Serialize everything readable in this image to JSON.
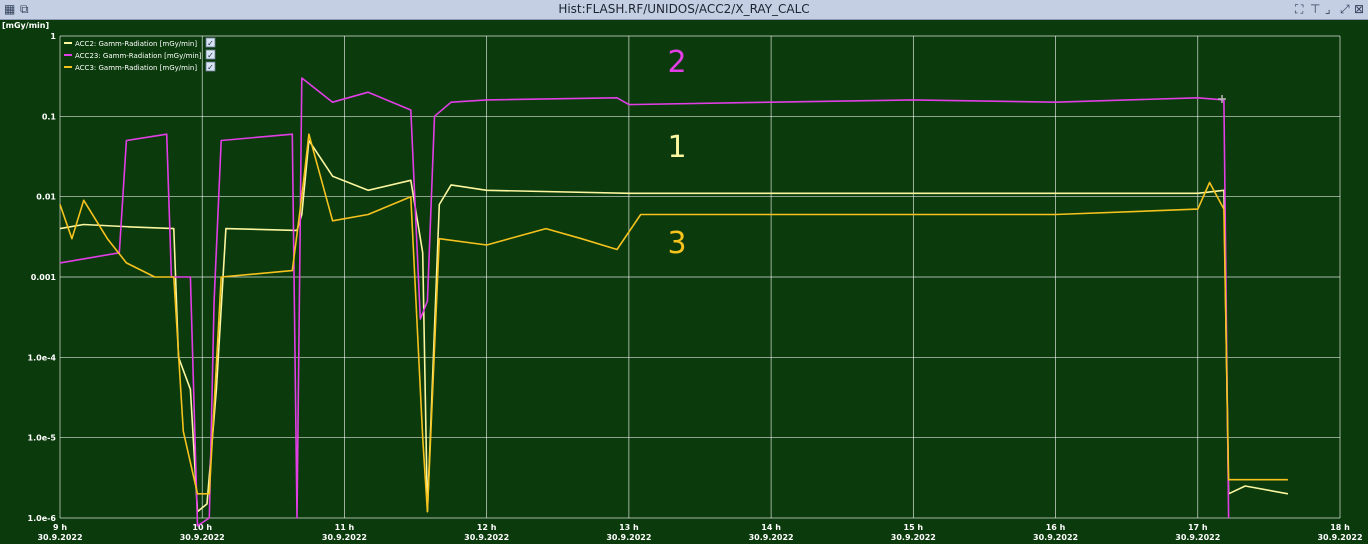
{
  "window": {
    "title": "Hist:FLASH.RF/UNIDOS/ACC2/X_RAY_CALC",
    "left_icons": [
      "chart-window-icon",
      "detach-window-icon"
    ],
    "right_icons": [
      "fullscreen-icon",
      "filter-icon",
      "minimize-icon",
      "maximize-icon",
      "close-icon"
    ]
  },
  "colors": {
    "plot_bg": "#0b3a0c",
    "grid": "#ffffff",
    "ACC2": "#fbf6a0",
    "ACC23": "#e23ee6",
    "ACC3": "#f5c21e"
  },
  "chart_data": {
    "type": "line",
    "title": "",
    "ylabel": "[mGy/min]",
    "yscale": "log",
    "ylim": [
      1e-06,
      1
    ],
    "yticks": [
      1,
      0.1,
      0.01,
      0.001,
      0.0001,
      1e-05,
      1e-06
    ],
    "ytick_labels": [
      "1",
      "0.1",
      "0.01",
      "0.001",
      "1.0e-4",
      "1.0e-5",
      "1.0e-6"
    ],
    "xlim": [
      "2022-09-30 09:00",
      "2022-09-30 18:00"
    ],
    "xtick_labels": [
      {
        "hour": "9 h",
        "date": "30.9.2022"
      },
      {
        "hour": "10 h",
        "date": "30.9.2022"
      },
      {
        "hour": "11 h",
        "date": "30.9.2022"
      },
      {
        "hour": "12 h",
        "date": "30.9.2022"
      },
      {
        "hour": "13 h",
        "date": "30.9.2022"
      },
      {
        "hour": "14 h",
        "date": "30.9.2022"
      },
      {
        "hour": "15 h",
        "date": "30.9.2022"
      },
      {
        "hour": "16 h",
        "date": "30.9.2022"
      },
      {
        "hour": "17 h",
        "date": "30.9.2022"
      },
      {
        "hour": "18 h",
        "date": "30.9.2022"
      }
    ],
    "grid": true,
    "legend_position": "top-left",
    "annotations": [
      {
        "text": "2",
        "series": "ACC23: Gamm-Radiation [mGy/min]"
      },
      {
        "text": "1",
        "series": "ACC2: Gamm-Radiation [mGy/min]"
      },
      {
        "text": "3",
        "series": "ACC3: Gamm-Radiation [mGy/min]"
      }
    ],
    "series": [
      {
        "name": "ACC2: Gamm-Radiation [mGy/min]",
        "color": "#fbf6a0",
        "points": [
          [
            "2022-09-30 09:00",
            0.004
          ],
          [
            "2022-09-30 09:10",
            0.0045
          ],
          [
            "2022-09-30 09:30",
            0.0042
          ],
          [
            "2022-09-30 09:48",
            0.004
          ],
          [
            "2022-09-30 09:50",
            0.0001
          ],
          [
            "2022-09-30 09:55",
            4e-05
          ],
          [
            "2022-09-30 09:58",
            1.2e-06
          ],
          [
            "2022-09-30 10:02",
            1.5e-06
          ],
          [
            "2022-09-30 10:06",
            4e-05
          ],
          [
            "2022-09-30 10:10",
            0.004
          ],
          [
            "2022-09-30 10:40",
            0.0038
          ],
          [
            "2022-09-30 10:42",
            0.006
          ],
          [
            "2022-09-30 10:45",
            0.05
          ],
          [
            "2022-09-30 10:55",
            0.018
          ],
          [
            "2022-09-30 11:10",
            0.012
          ],
          [
            "2022-09-30 11:28",
            0.016
          ],
          [
            "2022-09-30 11:33",
            0.002
          ],
          [
            "2022-09-30 11:35",
            1.2e-06
          ],
          [
            "2022-09-30 11:40",
            0.008
          ],
          [
            "2022-09-30 11:45",
            0.014
          ],
          [
            "2022-09-30 12:00",
            0.012
          ],
          [
            "2022-09-30 13:00",
            0.011
          ],
          [
            "2022-09-30 14:00",
            0.011
          ],
          [
            "2022-09-30 15:00",
            0.011
          ],
          [
            "2022-09-30 16:00",
            0.011
          ],
          [
            "2022-09-30 17:00",
            0.011
          ],
          [
            "2022-09-30 17:11",
            0.012
          ],
          [
            "2022-09-30 17:13",
            2e-06
          ],
          [
            "2022-09-30 17:20",
            2.5e-06
          ],
          [
            "2022-09-30 17:38",
            2e-06
          ]
        ]
      },
      {
        "name": "ACC23: Gamm-Radiation [mGy/min]",
        "color": "#e23ee6",
        "points": [
          [
            "2022-09-30 09:00",
            0.0015
          ],
          [
            "2022-09-30 09:25",
            0.002
          ],
          [
            "2022-09-30 09:28",
            0.05
          ],
          [
            "2022-09-30 09:45",
            0.06
          ],
          [
            "2022-09-30 09:47",
            0.001
          ],
          [
            "2022-09-30 09:55",
            0.001
          ],
          [
            "2022-09-30 09:58",
            8e-07
          ],
          [
            "2022-09-30 10:03",
            1e-06
          ],
          [
            "2022-09-30 10:05",
            0.0005
          ],
          [
            "2022-09-30 10:08",
            0.05
          ],
          [
            "2022-09-30 10:38",
            0.06
          ],
          [
            "2022-09-30 10:40",
            1e-06
          ],
          [
            "2022-09-30 10:42",
            0.3
          ],
          [
            "2022-09-30 10:55",
            0.15
          ],
          [
            "2022-09-30 11:10",
            0.2
          ],
          [
            "2022-09-30 11:28",
            0.12
          ],
          [
            "2022-09-30 11:32",
            0.0003
          ],
          [
            "2022-09-30 11:35",
            0.0005
          ],
          [
            "2022-09-30 11:38",
            0.1
          ],
          [
            "2022-09-30 11:45",
            0.15
          ],
          [
            "2022-09-30 12:00",
            0.16
          ],
          [
            "2022-09-30 12:55",
            0.17
          ],
          [
            "2022-09-30 13:00",
            0.14
          ],
          [
            "2022-09-30 14:00",
            0.15
          ],
          [
            "2022-09-30 15:00",
            0.16
          ],
          [
            "2022-09-30 16:00",
            0.15
          ],
          [
            "2022-09-30 17:00",
            0.17
          ],
          [
            "2022-09-30 17:11",
            0.16
          ],
          [
            "2022-09-30 17:13",
            1e-06
          ]
        ]
      },
      {
        "name": "ACC3: Gamm-Radiation [mGy/min]",
        "color": "#f5c21e",
        "points": [
          [
            "2022-09-30 09:00",
            0.008
          ],
          [
            "2022-09-30 09:05",
            0.003
          ],
          [
            "2022-09-30 09:10",
            0.009
          ],
          [
            "2022-09-30 09:20",
            0.003
          ],
          [
            "2022-09-30 09:28",
            0.0015
          ],
          [
            "2022-09-30 09:40",
            0.001
          ],
          [
            "2022-09-30 09:48",
            0.001
          ],
          [
            "2022-09-30 09:52",
            1.2e-05
          ],
          [
            "2022-09-30 09:58",
            2e-06
          ],
          [
            "2022-09-30 10:03",
            2e-06
          ],
          [
            "2022-09-30 10:08",
            0.001
          ],
          [
            "2022-09-30 10:38",
            0.0012
          ],
          [
            "2022-09-30 10:42",
            0.01
          ],
          [
            "2022-09-30 10:45",
            0.06
          ],
          [
            "2022-09-30 10:55",
            0.005
          ],
          [
            "2022-09-30 11:10",
            0.006
          ],
          [
            "2022-09-30 11:28",
            0.01
          ],
          [
            "2022-09-30 11:33",
            1e-05
          ],
          [
            "2022-09-30 11:35",
            1.2e-06
          ],
          [
            "2022-09-30 11:40",
            0.003
          ],
          [
            "2022-09-30 12:00",
            0.0025
          ],
          [
            "2022-09-30 12:25",
            0.004
          ],
          [
            "2022-09-30 12:40",
            0.003
          ],
          [
            "2022-09-30 12:55",
            0.0022
          ],
          [
            "2022-09-30 13:05",
            0.006
          ],
          [
            "2022-09-30 14:00",
            0.006
          ],
          [
            "2022-09-30 15:00",
            0.006
          ],
          [
            "2022-09-30 16:00",
            0.006
          ],
          [
            "2022-09-30 17:00",
            0.007
          ],
          [
            "2022-09-30 17:05",
            0.015
          ],
          [
            "2022-09-30 17:11",
            0.007
          ],
          [
            "2022-09-30 17:13",
            3e-06
          ],
          [
            "2022-09-30 17:20",
            3e-06
          ],
          [
            "2022-09-30 17:38",
            3e-06
          ]
        ]
      }
    ]
  }
}
